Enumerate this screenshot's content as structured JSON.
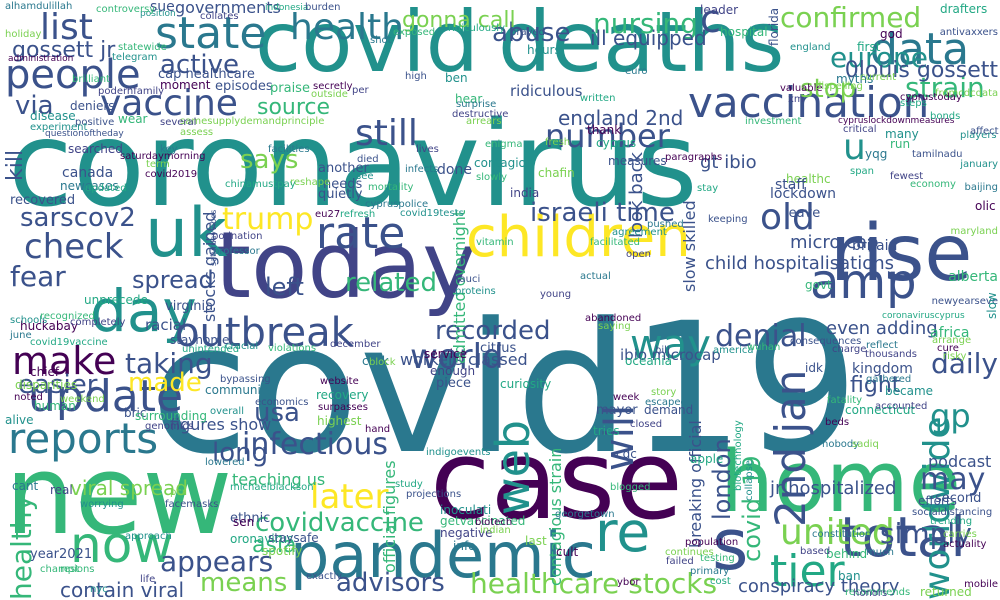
{
  "palette": {
    "purple": "#440154",
    "indigo": "#3b528b",
    "slate": "#414487",
    "teal": "#21918c",
    "blueteal": "#2a788e",
    "green": "#35b779",
    "lime": "#7ad151",
    "yellow": "#fde725",
    "sea": "#22a884"
  },
  "words": {
    "coronavirus": "coronavirus",
    "covid19": "covid19",
    "covid": "covid",
    "deaths": "deaths",
    "case": "case",
    "new": "new",
    "today": "today",
    "home": "home",
    "pandemic": "pandemic",
    "children": "children",
    "uk": "uk",
    "rise": "rise",
    "vaccination": "vaccination",
    "day": "day",
    "people": "people",
    "state": "state",
    "data": "data",
    "outbreak": "outbreak",
    "update": "update",
    "rate": "rate",
    "vaccine": "vaccine",
    "reports": "reports",
    "now": "now",
    "total": "total",
    "tier": "tier",
    "re": "re",
    "s": "s",
    "world": "world",
    "amp": "amp",
    "web": "web",
    "worldwide": "worldwide",
    "second_jan": "2nd jan",
    "united": "united",
    "health": "health",
    "list": "list",
    "still": "still",
    "number": "number",
    "confirmed": "confirmed",
    "europe": "europe",
    "strain": "strain",
    "stop": "stop",
    "check": "check",
    "trump": "trump",
    "old": "old",
    "israeli_time": "israeli time",
    "make": "make",
    "infectious": "infectious",
    "later": "later",
    "healthcare_stocks": "healthcare stocks",
    "covidvaccine": "covidvaccine",
    "way": "way",
    "will": "will",
    "gp": "gp",
    "may": "may",
    "simply": "simply",
    "daily": "daily",
    "denial": "denial",
    "left": "left",
    "related": "related",
    "spread": "spread",
    "fear": "fear",
    "taking": "taking",
    "made": "made",
    "easier": "easier",
    "recorded": "recorded",
    "london": "london",
    "covid_19": "covid_19",
    "sarscov2": "sarscov2",
    "long": "long",
    "usa": "usa",
    "asia": "asia",
    "means": "means",
    "appears": "appears",
    "advisors": "advisors",
    "healthy": "healthy",
    "nursing": "nursing",
    "abuse": "abuse",
    "active": "active",
    "via": "via",
    "source": "source",
    "says": "says",
    "c": "c",
    "u": "u",
    "gossett_jr": "gossett jr",
    "olouis_gossett": "0louis gossett",
    "gonna_call": "gonna call",
    "viral_spread": "viral spread",
    "contain_viral": "contain viral",
    "even_adding": "even adding",
    "jr_hospitalized": "jr hospitalized",
    "kill": "kill",
    "conspiracy_theory": "conspiracy theory",
    "child_hospitalisations": "child hospitalisations",
    "ibio_microcap": "ibio microcap",
    "workers_classed": "workers classed",
    "admitted_overnight": "admitted overnight",
    "breaking_official": "breaking official",
    "ill_equipped": "ill equipped",
    "england_2nd": "england 2nd",
    "slow_skilled": "slow skilled",
    "micro_cap": "micro cap",
    "look_back": "look back",
    "figures_show": "figures show",
    "stocks_gained": "stocks gained",
    "official_figures": "official figures",
    "teaching_us": "teaching us",
    "contagious_strain": "contagious strain",
    "gt_ibio": "gt ibio",
    "kingdom": "kingdom",
    "fight": "fight",
    "podcast": "podcast",
    "britain": "britain",
    "alberta": "alberta",
    "africa": "africa",
    "lockdown": "lockdown",
    "canada": "canada",
    "virginia": "virginia",
    "racial": "racial",
    "huckabay": "huckabay",
    "unprecede": "unprecede",
    "stayhome": "stayhome",
    "recovered": "recovered",
    "sue": "sue",
    "governments": "governments",
    "ridiculous": "ridiculous",
    "healthc": "healthc",
    "staff": "staff",
    "leave": "leave",
    "another": "another",
    "quietly": "quietly",
    "needs": "needs",
    "done": "done",
    "community": "community",
    "highest": "highest",
    "surpasses": "surpasses",
    "connecticut": "connecticut",
    "efforts": "efforts",
    "second": "second",
    "year2021": "year2021",
    "ethnic": "ethnic",
    "healthcare_cap": "cap healthcare",
    "episodes": "episodes",
    "moment": "moment",
    "praise": "praise",
    "deniers": "deniers",
    "disease": "disease",
    "wear": "wear",
    "searched": "searched",
    "newcases": "newcases",
    "disparities": "disparities",
    "chief": "chief",
    "covid19vaccine": "covid19vaccine",
    "bric": "bric",
    "alive": "alive",
    "human": "human",
    "enough": "enough",
    "piece": "piece",
    "citrus": "citrus",
    "service": "service",
    "mayor": "mayor",
    "demand": "demand",
    "inoculati": "inoculati",
    "getvaccinated": "getvaccinated",
    "negative": "negative",
    "info": "info",
    "last": "last",
    "cult": "cult",
    "tries": "tries",
    "cdc": "cdc",
    "nyc": "nyc",
    "rest": "rest",
    "real": "real",
    "cant": "cant",
    "icon": "icon",
    "spotify": "spotify",
    "sen": "sen",
    "oronavirus": "oronavirus",
    "staysafe": "staysafe",
    "ban": "ban",
    "behind": "behind",
    "based": "based",
    "much": "much",
    "returned": "returned",
    "ybor": "ybor",
    "cost": "cost",
    "exactly": "exactly",
    "approach": "approach",
    "testing": "testing",
    "failed": "failed",
    "primary": "primary",
    "continues": "continues",
    "population": "population",
    "apple": "apple",
    "idk": "idk",
    "became": "became",
    "govt": "govt",
    "thousands": "thousands",
    "gathered": "gathered",
    "risky": "risky",
    "mobile": "mobile",
    "drafters": "drafters",
    "antivaxxers": "antivaxxers",
    "players": "players",
    "economy": "economy",
    "fewest": "fewest",
    "baijing": "baijing",
    "maryland": "maryland",
    "olic": "olic",
    "span": "span",
    "tamilnadu": "tamilnadu",
    "many": "many",
    "run": "run",
    "critical": "critical",
    "yqg": "yqg",
    "fromcdcdata": "fromcdcdata",
    "god": "god",
    "first": "first",
    "florida": "florida",
    "england": "england",
    "hospital": "hospital",
    "leader": "leader",
    "myths": "myths",
    "current": "current",
    "valuable": "valuable",
    "indonesia": "indonesia",
    "burden": "burden",
    "position": "position",
    "controversy": "controversy",
    "collates": "collates",
    "alhamdulillah": "alhamdulillah",
    "holiday": "holiday",
    "administration": "administration",
    "ridiculously": "ridiculously",
    "prayed": "prayed",
    "hours": "hours",
    "exposed": "exposed",
    "per": "per",
    "shot": "shot",
    "outside": "outside",
    "secretly": "secretly",
    "written": "written",
    "high": "high",
    "ben": "ben",
    "hear": "hear",
    "destructive": "destructive",
    "surprise": "surprise",
    "arrears": "arrears",
    "thank": "thank",
    "cyprus": "cyprus",
    "measures": "measures",
    "contagion": "contagion",
    "slowly": "slowly",
    "india": "india",
    "cyprusplice": "cypruspolice",
    "reshape": "reshape",
    "eu27": "eu27",
    "refresh": "refresh",
    "died": "died",
    "see": "see",
    "mortality": "mortality",
    "podnation": "podnation",
    "professor": "professor",
    "term": "term",
    "saturdaymorning": "saturdaymorning",
    "updated": "updated",
    "questionoftheday": "questionoftheday",
    "schools": "schools",
    "recognized": "recognized",
    "completely": "completely",
    "june": "june",
    "weekend": "weekend",
    "noted": "noted",
    "unintended": "unintended",
    "bypassing": "bypassing",
    "crucial": "crucial",
    "violations": "violations",
    "december": "december",
    "click": "click",
    "block": "block",
    "website": "website",
    "recovery": "recovery",
    "economics": "economics",
    "overall": "overall",
    "surrounding": "surrounding",
    "genomics": "genomics",
    "lowered": "lowered",
    "pcr": "pcr",
    "hand": "hand",
    "michaelblackson": "michaelblackson",
    "facemasks": "facemasks",
    "worrying": "worrying",
    "champions": "champions",
    "life": "life",
    "georgetown": "georgetown",
    "indian": "indian",
    "biotech": "biotech",
    "study": "study",
    "projections": "projections",
    "indigoevents": "indigoevents",
    "blogged": "blogged",
    "closed": "closed",
    "escaped": "escaped",
    "story": "story",
    "week": "week",
    "curiosity": "curiosity",
    "fauci": "fauci",
    "proteins": "proteins",
    "vitamin": "vitamin",
    "young": "young",
    "actual": "actual",
    "saying": "saying",
    "abandoned": "abandoned",
    "oceania": "oceania",
    "bill": "bill",
    "america": "america",
    "wuhan": "wuhan",
    "charge": "charge",
    "reflect": "reflect",
    "arrange": "arrange",
    "cure": "cure",
    "coronaviruscyprus": "coronaviruscyprus",
    "newyearseve": "newyearseve",
    "slow": "slow",
    "fatality": "fatality",
    "accounted": "accounted",
    "nobody": "nobody",
    "sadiq": "sadiq",
    "beds": "beds",
    "biotechnology": "biotechnology",
    "consequences": "consequences",
    "stamp": "stamp",
    "collapse": "collapse",
    "recommends": "recommends",
    "honors": "honors",
    "constitution": "constitution",
    "carries": "carries",
    "actuality": "actuality",
    "trending": "trending",
    "socialdistancing": "socialdistancing",
    "telegram": "telegram",
    "statewide": "statewide",
    "poderhfamily": "poderhfamily",
    "facilities": "facilities",
    "samesupplydemandprinciple": "samesupplydemandprinciple",
    "covid2019": "covid2019",
    "chinamustpay": "chinamustpay",
    "saturdayvibes": "saturdayvibes",
    "covid19tests": "covid19tests",
    "enigma": "enigma",
    "lives": "lives",
    "infects": "infects",
    "fresh": "fresh",
    "paragraphs": "paragraphs",
    "stay": "stay",
    "keeping": "keeping",
    "agreement": "agreement",
    "facilitated": "facilitated",
    "open": "open",
    "pushed": "pushed",
    "chafin": "chafin",
    "cyprus_lockdown": "cypruslockdownmeasures",
    "steps": "steps",
    "affect": "affect",
    "january": "january",
    "investment": "investment",
    "xm": "xm",
    "euro": "euro",
    "dispelling": "dispelling",
    "cyprustoday": "cyprustoday",
    "bonds": "bonds",
    "positive": "positive",
    "experiment": "experiment",
    "brilliant": "brilliant",
    "several": "several",
    "key": "key",
    "assess": "assess"
  }
}
